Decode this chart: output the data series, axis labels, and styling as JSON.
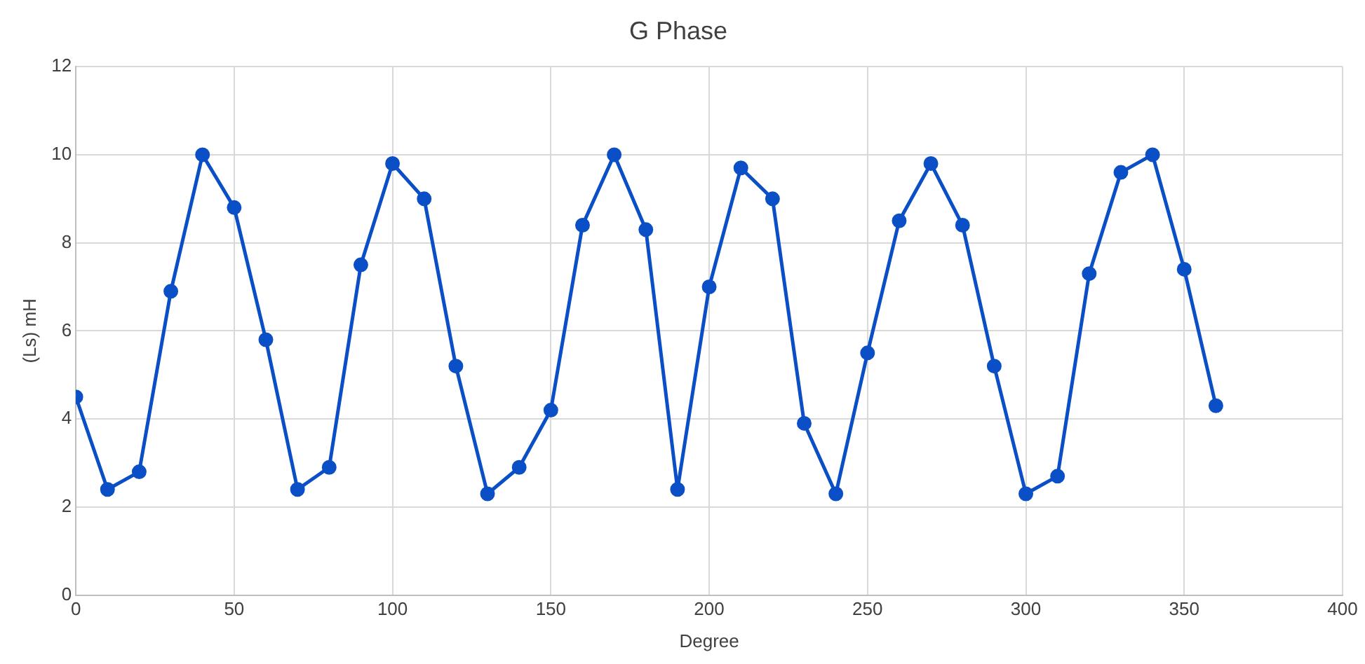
{
  "chart_data": {
    "type": "line",
    "title": "G Phase",
    "xlabel": "Degree",
    "ylabel": "(Ls) mH",
    "x": [
      0,
      10,
      20,
      30,
      40,
      50,
      60,
      70,
      80,
      90,
      100,
      110,
      120,
      130,
      140,
      150,
      160,
      170,
      180,
      190,
      200,
      210,
      220,
      230,
      240,
      250,
      260,
      270,
      280,
      290,
      300,
      310,
      320,
      330,
      340,
      350,
      360
    ],
    "series": [
      {
        "color": "#0a4fc6",
        "values": [
          4.5,
          2.4,
          2.8,
          6.9,
          10.0,
          8.8,
          5.8,
          2.4,
          2.9,
          7.5,
          9.8,
          9.0,
          5.2,
          2.3,
          2.9,
          4.2,
          8.4,
          10.0,
          8.3,
          2.4,
          7.0,
          9.7,
          9.0,
          3.9,
          2.3,
          5.5,
          8.5,
          9.8,
          8.4,
          5.2,
          2.3,
          2.7,
          7.3,
          9.6,
          10.0,
          7.4,
          4.3
        ]
      }
    ],
    "xlim": [
      0,
      400
    ],
    "xticks": [
      0,
      50,
      100,
      150,
      200,
      250,
      300,
      350,
      400
    ],
    "ylim": [
      0,
      12
    ],
    "yticks": [
      0,
      2,
      4,
      6,
      8,
      10,
      12
    ],
    "grid": true,
    "marker": "circle",
    "line_style": "solid"
  }
}
